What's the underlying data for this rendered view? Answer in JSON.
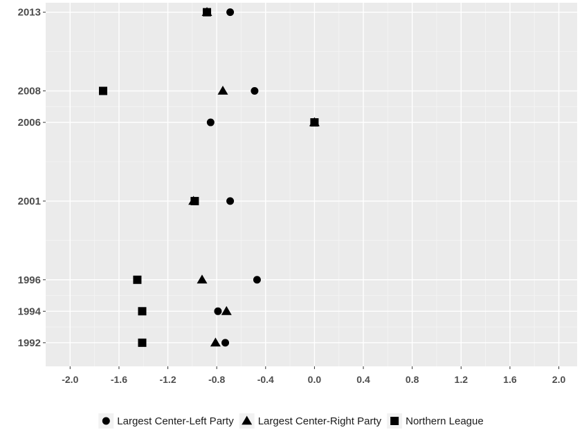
{
  "chart_data": {
    "type": "scatter",
    "title": "",
    "xlabel": "",
    "ylabel": "",
    "xlim": [
      -2.2,
      2.15
    ],
    "ylim": [
      1990.5,
      2013.6
    ],
    "grid": true,
    "legend_position": "bottom",
    "x_ticks": [
      "-2.0",
      "-1.6",
      "-1.2",
      "-0.8",
      "-0.4",
      "0.0",
      "0.4",
      "0.8",
      "1.2",
      "1.6",
      "2.0"
    ],
    "x_tick_values": [
      -2.0,
      -1.6,
      -1.2,
      -0.8,
      -0.4,
      0.0,
      0.4,
      0.8,
      1.2,
      1.6,
      2.0
    ],
    "y_ticks": [
      "1992",
      "1994",
      "1996",
      "2001",
      "2006",
      "2008",
      "2013"
    ],
    "y_tick_values": [
      1992,
      1994,
      1996,
      2001,
      2006,
      2008,
      2013
    ],
    "series": [
      {
        "name": "Largest Center-Left Party",
        "marker": "circle",
        "points": [
          {
            "year": 1992,
            "x": -0.73
          },
          {
            "year": 1994,
            "x": -0.79
          },
          {
            "year": 1996,
            "x": -0.47
          },
          {
            "year": 2001,
            "x": -0.69
          },
          {
            "year": 2006,
            "x": -0.85
          },
          {
            "year": 2008,
            "x": -0.49
          },
          {
            "year": 2013,
            "x": -0.69
          }
        ]
      },
      {
        "name": "Largest Center-Right Party",
        "marker": "triangle",
        "points": [
          {
            "year": 1992,
            "x": -0.81
          },
          {
            "year": 1994,
            "x": -0.72
          },
          {
            "year": 1996,
            "x": -0.92
          },
          {
            "year": 2001,
            "x": -0.99
          },
          {
            "year": 2006,
            "x": 0.0
          },
          {
            "year": 2008,
            "x": -0.75
          },
          {
            "year": 2013,
            "x": -0.88
          }
        ]
      },
      {
        "name": "Northern League",
        "marker": "square",
        "points": [
          {
            "year": 1992,
            "x": -1.41
          },
          {
            "year": 1994,
            "x": -1.41
          },
          {
            "year": 1996,
            "x": -1.45
          },
          {
            "year": 2001,
            "x": -0.98
          },
          {
            "year": 2006,
            "x": 0.0
          },
          {
            "year": 2008,
            "x": -1.73
          },
          {
            "year": 2013,
            "x": -0.88
          }
        ]
      }
    ]
  },
  "colors": {
    "panel_background": "#ebebeb",
    "grid_major": "#ffffff",
    "grid_minor": "#f5f5f5",
    "points": "#000000",
    "tick_text": "#4d4d4d",
    "legend_key_background": "#f2f2f2"
  }
}
